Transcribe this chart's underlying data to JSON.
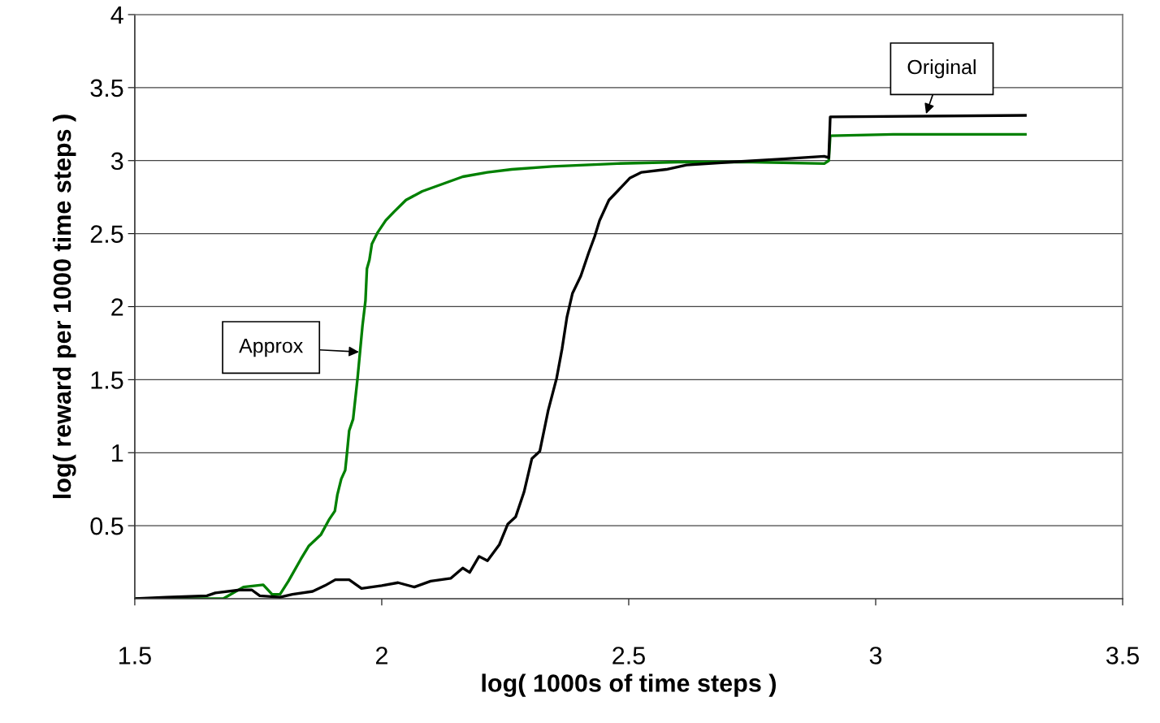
{
  "chart_data": {
    "type": "line",
    "xlabel": "log( 1000s of time steps )",
    "ylabel": "log( reward per 1000 time steps )",
    "xlim": [
      1.5,
      3.5
    ],
    "xticks": [
      1.5,
      2,
      2.5,
      3,
      3.5
    ],
    "ylim": [
      0,
      4
    ],
    "yticks": [
      0.5,
      1,
      1.5,
      2,
      2.5,
      3,
      3.5,
      4
    ],
    "grid": "y",
    "line_style": "solid",
    "marker": "none",
    "series": [
      {
        "color": "#008000",
        "x": [
          1.5,
          1.679,
          1.72,
          1.76,
          1.778,
          1.794,
          1.811,
          1.836,
          1.852,
          1.877,
          1.893,
          1.905,
          1.91,
          1.918,
          1.926,
          1.93,
          1.934,
          1.942,
          1.951,
          1.961,
          1.967,
          1.97,
          1.975,
          1.98,
          1.992,
          2.008,
          2.025,
          2.049,
          2.082,
          2.123,
          2.164,
          2.214,
          2.263,
          2.345,
          2.411,
          2.477,
          2.6,
          2.75,
          2.896,
          2.905,
          2.908,
          3.036,
          3.303
        ],
        "values": [
          0,
          0,
          0.08,
          0.095,
          0.03,
          0.03,
          0.12,
          0.27,
          0.36,
          0.44,
          0.54,
          0.6,
          0.71,
          0.82,
          0.88,
          1.01,
          1.15,
          1.23,
          1.51,
          1.87,
          2.04,
          2.26,
          2.32,
          2.43,
          2.51,
          2.59,
          2.65,
          2.73,
          2.79,
          2.84,
          2.89,
          2.92,
          2.94,
          2.96,
          2.97,
          2.98,
          2.99,
          2.99,
          2.98,
          3.0,
          3.17,
          3.18,
          3.18
        ]
      },
      {
        "color": "#000000",
        "x": [
          1.5,
          1.564,
          1.646,
          1.663,
          1.712,
          1.737,
          1.753,
          1.794,
          1.819,
          1.86,
          1.885,
          1.906,
          1.934,
          1.959,
          2.0,
          2.033,
          2.066,
          2.099,
          2.14,
          2.164,
          2.178,
          2.197,
          2.214,
          2.238,
          2.255,
          2.271,
          2.288,
          2.304,
          2.32,
          2.337,
          2.354,
          2.365,
          2.375,
          2.386,
          2.403,
          2.419,
          2.431,
          2.441,
          2.46,
          2.477,
          2.502,
          2.526,
          2.576,
          2.617,
          2.707,
          2.806,
          2.896,
          2.905,
          2.908,
          3.303
        ],
        "values": [
          0,
          0.01,
          0.02,
          0.04,
          0.06,
          0.06,
          0.02,
          0.01,
          0.03,
          0.05,
          0.09,
          0.13,
          0.13,
          0.07,
          0.09,
          0.11,
          0.08,
          0.12,
          0.14,
          0.21,
          0.18,
          0.29,
          0.26,
          0.37,
          0.51,
          0.56,
          0.73,
          0.96,
          1.01,
          1.29,
          1.51,
          1.71,
          1.93,
          2.09,
          2.21,
          2.37,
          2.48,
          2.59,
          2.73,
          2.79,
          2.88,
          2.92,
          2.94,
          2.97,
          2.99,
          3.01,
          3.03,
          3.02,
          3.3,
          3.31
        ]
      }
    ],
    "annotations": [
      {
        "text": "Approx",
        "x": 1.954,
        "y": 1.69
      },
      {
        "text": "Original",
        "x": 3.102,
        "y": 3.32
      }
    ]
  }
}
